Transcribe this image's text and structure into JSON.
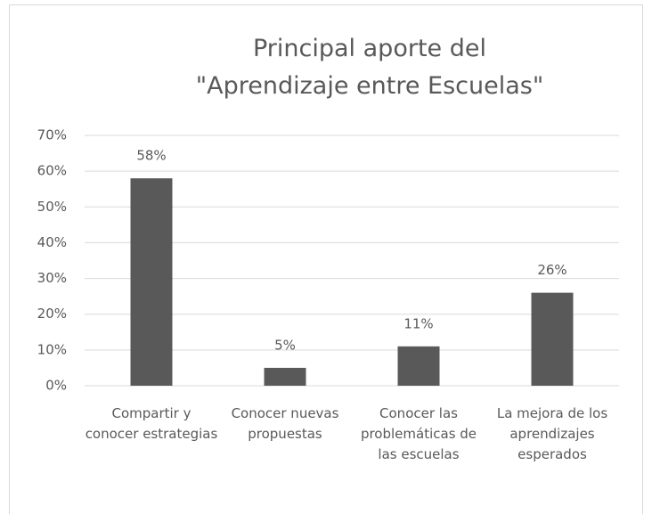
{
  "chart_data": {
    "type": "bar",
    "title": "Principal aporte del \"Aprendizaje entre Escuelas\"",
    "categories": [
      "Compartir y conocer estrategias",
      "Conocer nuevas propuestas",
      "Conocer las problemáticas de las escuelas",
      "La mejora de los aprendizajes esperados"
    ],
    "values": [
      58,
      5,
      11,
      26
    ],
    "value_labels": [
      "58%",
      "5%",
      "11%",
      "26%"
    ],
    "color": "#595959",
    "ylim": [
      0,
      70
    ],
    "yticks": [
      {
        "value": 0,
        "label": "0%"
      },
      {
        "value": 10,
        "label": "10%"
      },
      {
        "value": 20,
        "label": "20%"
      },
      {
        "value": 30,
        "label": "30%"
      },
      {
        "value": 40,
        "label": "40%"
      },
      {
        "value": 50,
        "label": "50%"
      },
      {
        "value": 60,
        "label": "60%"
      },
      {
        "value": 70,
        "label": "70%"
      }
    ],
    "grid": true
  }
}
